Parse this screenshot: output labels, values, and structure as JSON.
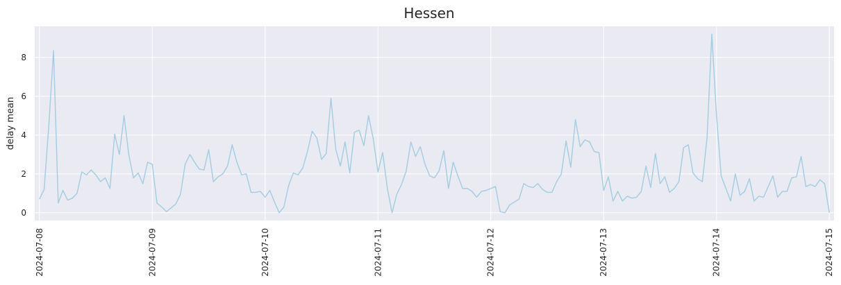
{
  "chart_data": {
    "type": "line",
    "title": "Hessen",
    "xlabel": "",
    "ylabel": "delay mean",
    "x_ticks": [
      "2024-07-08",
      "2024-07-09",
      "2024-07-10",
      "2024-07-11",
      "2024-07-12",
      "2024-07-13",
      "2024-07-14",
      "2024-07-15"
    ],
    "y_ticks": [
      0,
      2,
      4,
      6,
      8
    ],
    "xlim": [
      "2024-07-07 23:00",
      "2024-07-15 01:00"
    ],
    "ylim": [
      -0.4,
      9.6
    ],
    "grid": true,
    "line_color": "#a6cee3",
    "background_color": "#eaeaf2",
    "interval_hours": 1,
    "start": "2024-07-08 00:00",
    "series": [
      {
        "values": [
          0.7,
          1.2,
          4.5,
          8.35,
          0.5,
          1.15,
          0.65,
          0.75,
          1.0,
          2.1,
          1.95,
          2.2,
          1.95,
          1.6,
          1.8,
          1.25,
          4.05,
          3.0,
          5.0,
          3.0,
          1.8,
          2.05,
          1.5,
          2.6,
          2.5,
          0.5,
          0.3,
          0.05,
          0.25,
          0.45,
          0.95,
          2.5,
          3.0,
          2.6,
          2.25,
          2.2,
          3.25,
          1.6,
          1.85,
          2.0,
          2.4,
          3.5,
          2.6,
          1.95,
          2.0,
          1.05,
          1.05,
          1.1,
          0.8,
          1.15,
          0.55,
          0.0,
          0.3,
          1.4,
          2.05,
          1.95,
          2.3,
          3.15,
          4.2,
          3.85,
          2.75,
          3.05,
          5.9,
          3.3,
          2.4,
          3.65,
          2.05,
          4.15,
          4.25,
          3.45,
          5.0,
          3.8,
          2.1,
          3.1,
          1.25,
          0.0,
          0.95,
          1.45,
          2.15,
          3.65,
          2.9,
          3.4,
          2.5,
          1.9,
          1.8,
          2.15,
          3.2,
          1.25,
          2.6,
          1.9,
          1.25,
          1.25,
          1.1,
          0.8,
          1.1,
          1.15,
          1.25,
          1.35,
          0.05,
          0.0,
          0.4,
          0.55,
          0.7,
          1.5,
          1.35,
          1.3,
          1.5,
          1.2,
          1.05,
          1.05,
          1.6,
          2.0,
          3.7,
          2.35,
          4.8,
          3.4,
          3.75,
          3.65,
          3.15,
          3.1,
          1.15,
          1.85,
          0.6,
          1.1,
          0.6,
          0.85,
          0.75,
          0.8,
          1.1,
          2.4,
          1.3,
          3.05,
          1.5,
          1.85,
          1.05,
          1.25,
          1.6,
          3.35,
          3.5,
          2.05,
          1.75,
          1.6,
          3.9,
          9.2,
          5.0,
          1.9,
          1.25,
          0.6,
          2.0,
          0.9,
          1.1,
          1.75,
          0.6,
          0.85,
          0.8,
          1.35,
          1.9,
          0.8,
          1.1,
          1.1,
          1.8,
          1.85,
          2.9,
          1.35,
          1.45,
          1.35,
          1.7,
          1.5,
          0.0
        ]
      }
    ]
  }
}
